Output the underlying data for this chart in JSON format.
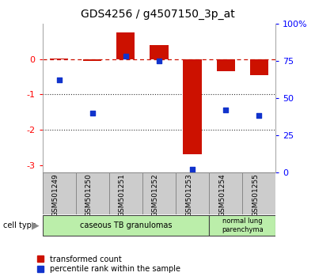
{
  "title": "GDS4256 / g4507150_3p_at",
  "samples": [
    "GSM501249",
    "GSM501250",
    "GSM501251",
    "GSM501252",
    "GSM501253",
    "GSM501254",
    "GSM501255"
  ],
  "red_values": [
    0.02,
    -0.05,
    0.75,
    0.4,
    -2.7,
    -0.35,
    -0.45
  ],
  "blue_values": [
    62,
    40,
    78,
    75,
    2,
    42,
    38
  ],
  "ylim_left": [
    -3.2,
    1.0
  ],
  "ylim_right": [
    0,
    100
  ],
  "yticks_left": [
    -3,
    -2,
    -1,
    0
  ],
  "ytick_labels_left": [
    "-3",
    "-2",
    "-1",
    "0"
  ],
  "yticks_right": [
    0,
    25,
    50,
    75,
    100
  ],
  "ytick_labels_right": [
    "0",
    "25",
    "50",
    "75",
    "100%"
  ],
  "bar_color": "#cc1100",
  "dot_color": "#1133cc",
  "hline_color": "#cc1100",
  "dotted_line_color": "#333333",
  "legend_red": "transformed count",
  "legend_blue": "percentile rank within the sample",
  "bar_width": 0.55,
  "cell_group1_label": "caseous TB granulomas",
  "cell_group2_label": "normal lung\nparenchyma",
  "cell_color": "#bbeeaa",
  "xtick_bg": "#cccccc"
}
